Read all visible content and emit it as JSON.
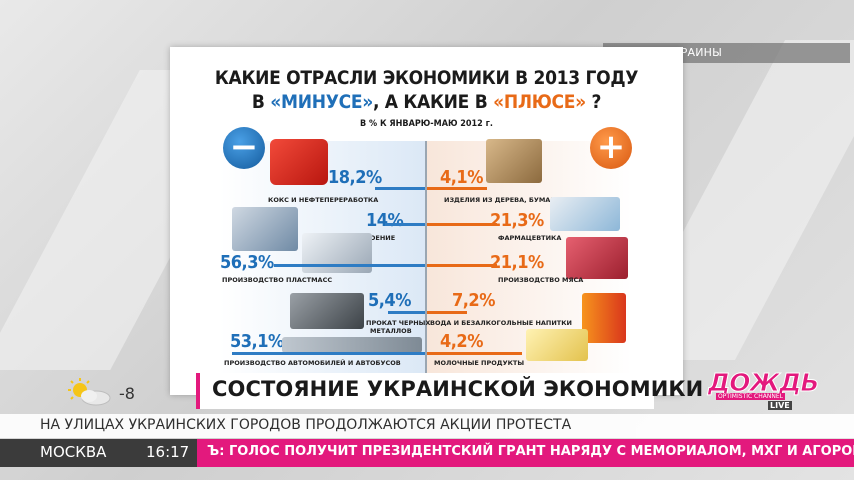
{
  "source_label": "ГОССТАТ УКРАИНЫ",
  "infographic": {
    "title_line1": "КАКИЕ ОТРАСЛИ ЭКОНОМИКИ В 2013 ГОДУ",
    "title_line2_a": "В ",
    "title_line2_minus": "«МИНУСЕ»",
    "title_line2_b": ", А КАКИЕ В ",
    "title_line2_plus": "«ПЛЮСЕ»",
    "title_line2_c": " ?",
    "subtitle": "В % К ЯНВАРЮ-МАЮ 2012 г.",
    "minus_sign": "−",
    "plus_sign": "+",
    "minus_items": [
      {
        "value": "18,2%",
        "label": "КОКС И НЕФТЕПЕРЕРАБОТКА"
      },
      {
        "value": "14%",
        "label": "МАШИНОСТРОЕНИЕ"
      },
      {
        "value": "56,3%",
        "label": "ПРОИЗВОДСТВО ПЛАСТМАСС"
      },
      {
        "value": "5,4%",
        "label": "ПРОКАТ ЧЕРНЫХ",
        "label2": "МЕТАЛЛОВ"
      },
      {
        "value": "53,1%",
        "label": "ПРОИЗВОДСТВО АВТОМОБИЛЕЙ И АВТОБУСОВ"
      }
    ],
    "plus_items": [
      {
        "value": "4,1%",
        "label": "ИЗДЕЛИЯ ИЗ ДЕРЕВА, БУМАГА"
      },
      {
        "value": "21,3%",
        "label": "ФАРМАЦЕВТИКА"
      },
      {
        "value": "21,1%",
        "label": "ПРОИЗВОДСТВО МЯСА"
      },
      {
        "value": "7,2%",
        "label": "ВОДА И БЕЗАЛКОГОЛЬНЫЕ НАПИТКИ"
      },
      {
        "value": "4,2%",
        "label": "МОЛОЧНЫЕ ПРОДУКТЫ"
      }
    ]
  },
  "lower_third": {
    "title": "СОСТОЯНИЕ УКРАИНСКОЙ ЭКОНОМИКИ"
  },
  "weather": {
    "temperature": "-8",
    "icon": "sun-cloud-icon"
  },
  "ticker": {
    "headline": "НА УЛИЦАХ УКРАИНСКИХ ГОРОДОВ ПРОДОЛЖАЮТСЯ АКЦИИ ПРОТЕСТА"
  },
  "bottom_bar": {
    "city": "МОСКВА",
    "time": "16:17",
    "news": "Ъ: ГОЛОС ПОЛУЧИТ ПРЕЗИДЕНТСКИЙ ГРАНТ НАРЯДУ С МЕМОРИАЛОМ, МХГ И АГОРОЙ"
  },
  "channel": {
    "brand": "ДОЖДЬ",
    "tagline": "OPTIMISTIC CHANNEL",
    "live": "LIVE"
  },
  "colors": {
    "minus": "#1f6fb8",
    "plus": "#e86a17",
    "accent": "#e3197d"
  }
}
